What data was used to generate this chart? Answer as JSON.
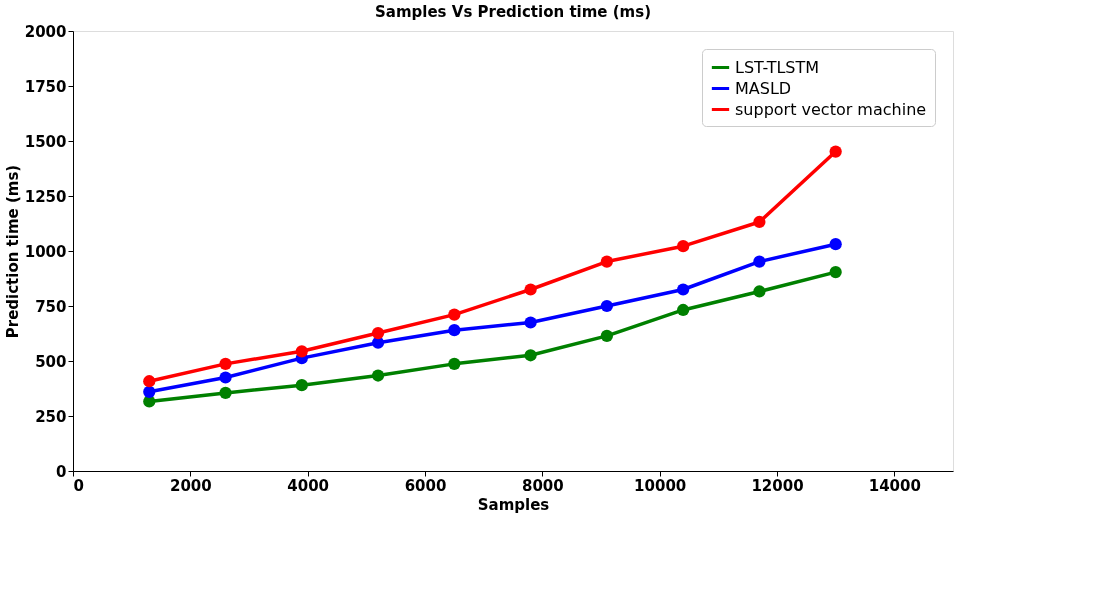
{
  "chart_data": {
    "type": "line",
    "title": "Samples  Vs Prediction time (ms)",
    "xlabel": "Samples",
    "ylabel": "Prediction time (ms)",
    "x": [
      1300,
      2600,
      3900,
      5200,
      6500,
      7800,
      9100,
      10400,
      11700,
      13000
    ],
    "series": [
      {
        "name": "LST-TLSTM",
        "color": "#008000",
        "values": [
          316,
          355,
          390,
          434,
          487,
          526,
          614,
          732,
          816,
          904
        ]
      },
      {
        "name": "MASLD",
        "color": "#0000ff",
        "values": [
          360,
          425,
          513,
          583,
          640,
          675,
          750,
          825,
          952,
          1031
        ]
      },
      {
        "name": "support vector machine",
        "color": "#ff0000",
        "values": [
          408,
          487,
          544,
          627,
          711,
          825,
          952,
          1022,
          1132,
          1452
        ]
      }
    ],
    "xlim": [
      0,
      15000
    ],
    "xticks": [
      0,
      2000,
      4000,
      6000,
      8000,
      10000,
      12000,
      14000
    ],
    "ylim": [
      0,
      2000
    ],
    "yticks": [
      0,
      250,
      500,
      750,
      1000,
      1250,
      1500,
      1750,
      2000
    ],
    "grid": false,
    "legend": "top right",
    "marker": "circle",
    "line_style": "solid"
  }
}
